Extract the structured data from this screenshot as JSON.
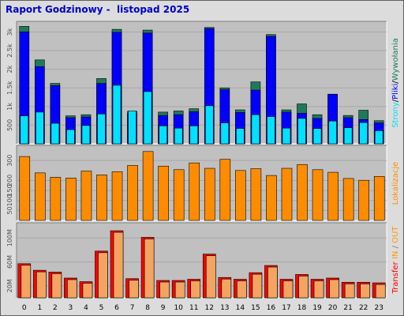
{
  "title": "Raport Godzinowy -  listopad 2025",
  "colors": {
    "panel_bg": "#c0c0c0",
    "hits": "#1f7a5a",
    "files": "#0000ff",
    "pages": "#00e0ff",
    "visits": "#ff8c00",
    "kbytes": "#ff0000",
    "kbytes_fill": "#f4a460",
    "in_out": "#ff9900",
    "gray_text": "#808080"
  },
  "side_labels": {
    "top": {
      "pages": "Strony",
      "sep1": "/",
      "files": "Pliki",
      "sep2": "/",
      "hits": "Wywołania"
    },
    "mid": "Lokalizacje",
    "bot": {
      "transfer": "Transfer",
      "in": "IN",
      "sep": " / ",
      "out": "OUT"
    }
  },
  "chart_data": [
    {
      "type": "bar",
      "categories": [
        "0",
        "1",
        "2",
        "3",
        "4",
        "5",
        "6",
        "7",
        "8",
        "9",
        "10",
        "11",
        "12",
        "13",
        "14",
        "15",
        "16",
        "17",
        "18",
        "19",
        "20",
        "21",
        "22",
        "23"
      ],
      "y_ticks": [
        "500",
        "1k",
        "1.5k",
        "2k",
        "2.5k",
        "3k"
      ],
      "ylim": [
        0,
        3200
      ],
      "series": [
        {
          "name": "Wywołania",
          "values": [
            3150,
            2250,
            1620,
            750,
            780,
            1750,
            3070,
            870,
            3050,
            850,
            880,
            940,
            3120,
            1500,
            910,
            1660,
            2930,
            910,
            1070,
            780,
            1330,
            760,
            900,
            620
          ]
        },
        {
          "name": "Pliki",
          "values": [
            3000,
            2070,
            1560,
            700,
            720,
            1620,
            2990,
            810,
            2970,
            760,
            780,
            860,
            3090,
            1450,
            840,
            1440,
            2880,
            850,
            820,
            680,
            1330,
            700,
            650,
            560
          ]
        },
        {
          "name": "Strony",
          "values": [
            750,
            850,
            550,
            380,
            490,
            800,
            1570,
            880,
            1400,
            480,
            420,
            480,
            1020,
            560,
            410,
            780,
            730,
            420,
            680,
            410,
            610,
            430,
            570,
            350
          ]
        }
      ]
    },
    {
      "type": "bar",
      "categories": [
        "0",
        "1",
        "2",
        "3",
        "4",
        "5",
        "6",
        "7",
        "8",
        "9",
        "10",
        "11",
        "12",
        "13",
        "14",
        "15",
        "16",
        "17",
        "18",
        "19",
        "20",
        "21",
        "22",
        "23"
      ],
      "y_ticks": [
        "50",
        "100",
        "150",
        "200",
        "300"
      ],
      "ylim": [
        0,
        360
      ],
      "series": [
        {
          "name": "Lokalizacje",
          "values": [
            320,
            238,
            216,
            212,
            247,
            228,
            244,
            275,
            345,
            272,
            254,
            288,
            261,
            306,
            250,
            259,
            225,
            261,
            280,
            254,
            241,
            210,
            201,
            220
          ]
        }
      ]
    },
    {
      "type": "bar",
      "categories": [
        "0",
        "1",
        "2",
        "3",
        "4",
        "5",
        "6",
        "7",
        "8",
        "9",
        "10",
        "11",
        "12",
        "13",
        "14",
        "15",
        "16",
        "17",
        "18",
        "19",
        "20",
        "21",
        "22",
        "23"
      ],
      "y_ticks": [
        "20M",
        "60M",
        "100M"
      ],
      "ylim": [
        0,
        120
      ],
      "series": [
        {
          "name": "Transfer",
          "values": [
            57,
            46,
            43,
            33,
            27,
            78,
            112,
            32,
            101,
            29,
            29,
            31,
            73,
            34,
            31,
            42,
            54,
            31,
            39,
            31,
            33,
            26,
            26,
            25
          ]
        }
      ]
    }
  ]
}
